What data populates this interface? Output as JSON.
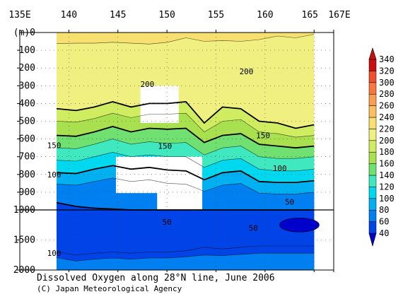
{
  "chart_data": {
    "type": "heatmap",
    "title": "Dissolved Oxygen along 28°N line, June 2006",
    "credit": "(C) Japan Meteorological Agency",
    "xaxis": {
      "ticks": [
        {
          "value": 135,
          "label": "135E"
        },
        {
          "value": 140,
          "label": "140"
        },
        {
          "value": 145,
          "label": "145"
        },
        {
          "value": 150,
          "label": "150"
        },
        {
          "value": 155,
          "label": "155"
        },
        {
          "value": 160,
          "label": "160"
        },
        {
          "value": 165,
          "label": "165"
        },
        {
          "value": 167,
          "label": "167E"
        }
      ],
      "data_range": [
        137,
        165
      ]
    },
    "yaxis": {
      "unit": "(m)",
      "upper_ticks": [
        0,
        100,
        200,
        300,
        400,
        500,
        600,
        700,
        800,
        900,
        1000
      ],
      "lower_ticks": [
        1000,
        1500,
        2000
      ]
    },
    "colorbar": {
      "levels": [
        40,
        60,
        80,
        100,
        120,
        140,
        160,
        180,
        200,
        220,
        240,
        260,
        280,
        300,
        320,
        340
      ],
      "colors": [
        "#0000cc",
        "#0044e8",
        "#0080f0",
        "#00b0f0",
        "#00d8f0",
        "#40e8c0",
        "#70e070",
        "#a8e050",
        "#d0ec60",
        "#f0f080",
        "#f8e070",
        "#f8c060",
        "#f8a050",
        "#f87840",
        "#f05030",
        "#c81010"
      ]
    },
    "depth_bands": [
      {
        "min_do": 220,
        "depth": [
          70,
          62,
          60,
          60,
          55,
          60,
          65,
          55,
          30,
          50,
          45,
          50,
          40,
          20,
          30,
          10
        ]
      },
      {
        "min_do": 200,
        "depth": [
          430,
          430,
          440,
          420,
          390,
          420,
          400,
          400,
          390,
          510,
          420,
          430,
          500,
          510,
          540,
          520
        ]
      },
      {
        "min_do": 180,
        "depth": [
          500,
          500,
          505,
          485,
          455,
          480,
          460,
          460,
          455,
          560,
          500,
          490,
          560,
          570,
          590,
          580
        ]
      },
      {
        "min_do": 160,
        "depth": [
          580,
          580,
          585,
          560,
          530,
          560,
          540,
          545,
          540,
          620,
          580,
          570,
          630,
          640,
          650,
          640
        ]
      },
      {
        "min_do": 140,
        "depth": [
          650,
          650,
          655,
          630,
          600,
          630,
          615,
          625,
          620,
          690,
          650,
          640,
          700,
          710,
          710,
          700
        ]
      },
      {
        "min_do": 120,
        "depth": [
          720,
          720,
          725,
          700,
          675,
          700,
          690,
          700,
          700,
          760,
          720,
          710,
          770,
          780,
          780,
          770
        ]
      },
      {
        "min_do": 100,
        "depth": [
          790,
          790,
          795,
          770,
          750,
          770,
          760,
          775,
          780,
          830,
          790,
          780,
          840,
          845,
          845,
          835
        ]
      },
      {
        "min_do": 80,
        "depth": [
          855,
          855,
          860,
          840,
          820,
          840,
          830,
          850,
          855,
          895,
          860,
          850,
          905,
          910,
          910,
          900
        ]
      },
      {
        "min_do": 60,
        "depth": [
          940,
          960,
          980,
          990,
          995,
          1000,
          1000,
          1000,
          1000,
          1000,
          1000,
          1000,
          1000,
          1000,
          1000,
          1000
        ]
      },
      {
        "min_do": 60,
        "depth": [
          1700,
          1700,
          1750,
          1720,
          1700,
          1720,
          1700,
          1700,
          1680,
          1620,
          1650,
          1620,
          1600,
          1600,
          1600,
          1600
        ]
      },
      {
        "min_do": 80,
        "depth": [
          1800,
          1800,
          1850,
          1820,
          1800,
          1820,
          1800,
          1800,
          1780,
          1750,
          1760,
          1740,
          1720,
          1720,
          1720,
          1720
        ]
      }
    ],
    "contour_labels": [
      {
        "text": "200",
        "lon": 148,
        "depth": 290
      },
      {
        "text": "200",
        "lon": 158.1,
        "depth": 220
      },
      {
        "text": "150",
        "lon": 138.5,
        "depth": 635
      },
      {
        "text": "150",
        "lon": 149.8,
        "depth": 640
      },
      {
        "text": "150",
        "lon": 159.8,
        "depth": 580
      },
      {
        "text": "100",
        "lon": 138.5,
        "depth": 800
      },
      {
        "text": "100",
        "lon": 161.5,
        "depth": 765
      },
      {
        "text": "50",
        "lon": 162.5,
        "depth": 955
      },
      {
        "text": "50",
        "lon": 150,
        "depth": 1200
      },
      {
        "text": "50",
        "lon": 158.8,
        "depth": 1300
      },
      {
        "text": "100",
        "lon": 138.5,
        "depth": 1720
      }
    ],
    "missing_regions": [
      {
        "lon": [
          147.3,
          151.2
        ],
        "depth": [
          300,
          510
        ]
      },
      {
        "lon": [
          144.8,
          149.5
        ],
        "depth": [
          700,
          905
        ]
      },
      {
        "lon": [
          149.0,
          153.6
        ],
        "depth": [
          700,
          1000
        ]
      }
    ],
    "minimum_core": {
      "lon": 163.5,
      "depth": 1250,
      "max_do": 40
    }
  }
}
